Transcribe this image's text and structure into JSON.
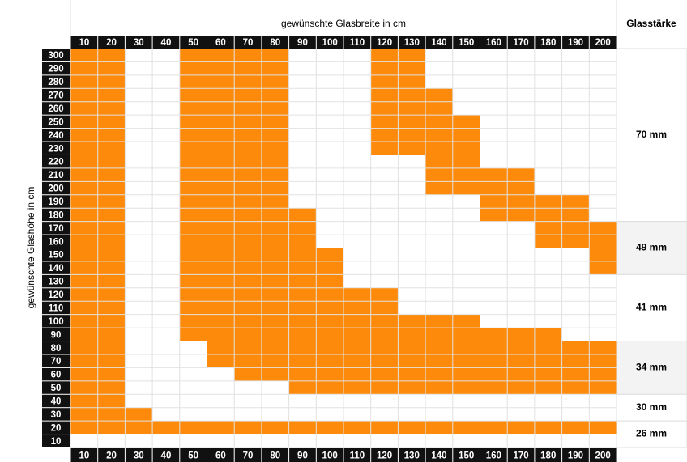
{
  "header": {
    "title": "gewünschte Glasbreite in cm",
    "thickness_title": "Glasstärke",
    "row_title": "gewünschte Glashöhe in cm"
  },
  "columns": [
    10,
    20,
    30,
    40,
    50,
    60,
    70,
    80,
    90,
    100,
    110,
    120,
    130,
    140,
    150,
    160,
    170,
    180,
    190,
    200
  ],
  "fill_color": "#fd8a0a",
  "rows": [
    {
      "label": 300,
      "filled": [
        [
          10,
          20
        ],
        [
          50,
          80
        ],
        [
          120,
          130
        ]
      ]
    },
    {
      "label": 290,
      "filled": [
        [
          10,
          20
        ],
        [
          50,
          80
        ],
        [
          120,
          130
        ]
      ]
    },
    {
      "label": 280,
      "filled": [
        [
          10,
          20
        ],
        [
          50,
          80
        ],
        [
          120,
          130
        ]
      ]
    },
    {
      "label": 270,
      "filled": [
        [
          10,
          20
        ],
        [
          50,
          80
        ],
        [
          120,
          140
        ]
      ]
    },
    {
      "label": 260,
      "filled": [
        [
          10,
          20
        ],
        [
          50,
          80
        ],
        [
          120,
          140
        ]
      ]
    },
    {
      "label": 250,
      "filled": [
        [
          10,
          20
        ],
        [
          50,
          80
        ],
        [
          120,
          150
        ]
      ]
    },
    {
      "label": 240,
      "filled": [
        [
          10,
          20
        ],
        [
          50,
          80
        ],
        [
          120,
          150
        ]
      ]
    },
    {
      "label": 230,
      "filled": [
        [
          10,
          20
        ],
        [
          50,
          80
        ],
        [
          120,
          150
        ]
      ]
    },
    {
      "label": 220,
      "filled": [
        [
          10,
          20
        ],
        [
          50,
          80
        ],
        [
          140,
          150
        ]
      ]
    },
    {
      "label": 210,
      "filled": [
        [
          10,
          20
        ],
        [
          50,
          80
        ],
        [
          140,
          170
        ]
      ]
    },
    {
      "label": 200,
      "filled": [
        [
          10,
          20
        ],
        [
          50,
          80
        ],
        [
          140,
          170
        ]
      ]
    },
    {
      "label": 190,
      "filled": [
        [
          10,
          20
        ],
        [
          50,
          80
        ],
        [
          160,
          190
        ]
      ]
    },
    {
      "label": 180,
      "filled": [
        [
          10,
          20
        ],
        [
          50,
          90
        ],
        [
          160,
          190
        ]
      ]
    },
    {
      "label": 170,
      "filled": [
        [
          10,
          20
        ],
        [
          50,
          90
        ],
        [
          180,
          200
        ]
      ]
    },
    {
      "label": 160,
      "filled": [
        [
          10,
          20
        ],
        [
          50,
          90
        ],
        [
          180,
          200
        ]
      ]
    },
    {
      "label": 150,
      "filled": [
        [
          10,
          20
        ],
        [
          50,
          100
        ],
        [
          200,
          200
        ]
      ]
    },
    {
      "label": 140,
      "filled": [
        [
          10,
          20
        ],
        [
          50,
          100
        ],
        [
          200,
          200
        ]
      ]
    },
    {
      "label": 130,
      "filled": [
        [
          10,
          20
        ],
        [
          50,
          100
        ]
      ]
    },
    {
      "label": 120,
      "filled": [
        [
          10,
          20
        ],
        [
          50,
          120
        ]
      ]
    },
    {
      "label": 110,
      "filled": [
        [
          10,
          20
        ],
        [
          50,
          120
        ]
      ]
    },
    {
      "label": 100,
      "filled": [
        [
          10,
          20
        ],
        [
          50,
          150
        ]
      ]
    },
    {
      "label": 90,
      "filled": [
        [
          10,
          20
        ],
        [
          50,
          180
        ]
      ]
    },
    {
      "label": 80,
      "filled": [
        [
          10,
          20
        ],
        [
          60,
          200
        ]
      ]
    },
    {
      "label": 70,
      "filled": [
        [
          10,
          20
        ],
        [
          60,
          200
        ]
      ]
    },
    {
      "label": 60,
      "filled": [
        [
          10,
          20
        ],
        [
          70,
          200
        ]
      ]
    },
    {
      "label": 50,
      "filled": [
        [
          10,
          20
        ],
        [
          90,
          200
        ]
      ]
    },
    {
      "label": 40,
      "filled": [
        [
          10,
          20
        ]
      ]
    },
    {
      "label": 30,
      "filled": [
        [
          10,
          30
        ]
      ]
    },
    {
      "label": 20,
      "filled": [
        [
          10,
          200
        ]
      ]
    },
    {
      "label": 10,
      "filled": []
    }
  ],
  "thickness": [
    {
      "label": "70 mm",
      "rows": [
        300,
        180
      ],
      "shaded": false
    },
    {
      "label": "49 mm",
      "rows": [
        170,
        140
      ],
      "shaded": true
    },
    {
      "label": "41 mm",
      "rows": [
        130,
        90
      ],
      "shaded": false
    },
    {
      "label": "34 mm",
      "rows": [
        80,
        50
      ],
      "shaded": true
    },
    {
      "label": "30 mm",
      "rows": [
        40,
        30
      ],
      "shaded": false
    },
    {
      "label": "26 mm",
      "rows": [
        20,
        10
      ],
      "shaded": false
    }
  ]
}
